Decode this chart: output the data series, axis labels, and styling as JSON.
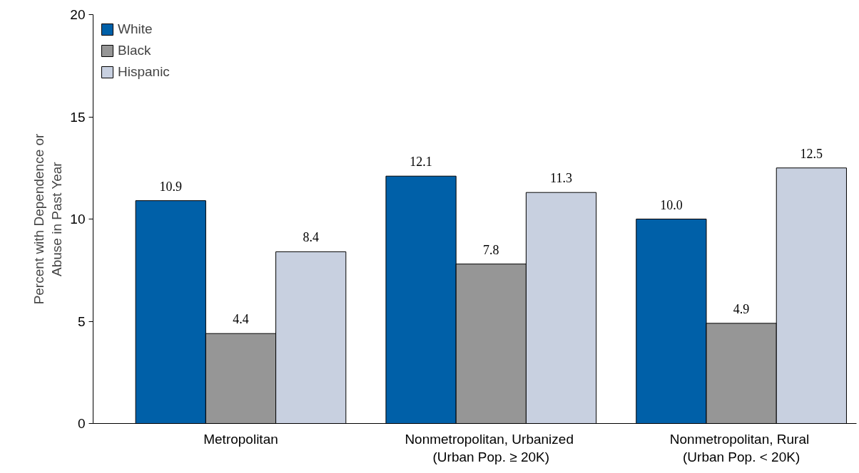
{
  "chart_data": {
    "type": "bar",
    "ylabel": "Percent with Dependence or\nAbuse in Past Year",
    "categories": [
      "Metropolitan",
      "Nonmetropolitan,  Urbanized\n(Urban Pop. ≥ 20K)",
      "Nonmetropolitan,  Rural\n(Urban Pop. < 20K)"
    ],
    "series": [
      {
        "name": "White",
        "color": "#0060a8",
        "values": [
          10.9,
          12.1,
          10.0
        ],
        "value_labels": [
          "10.9",
          "12.1",
          "10.0"
        ]
      },
      {
        "name": "Black",
        "color": "#969696",
        "values": [
          4.4,
          7.8,
          4.9
        ],
        "value_labels": [
          "4.4",
          "7.8",
          "4.9"
        ]
      },
      {
        "name": "Hispanic",
        "color": "#c8d0e0",
        "values": [
          8.4,
          11.3,
          12.5
        ],
        "value_labels": [
          "8.4",
          "11.3",
          "12.5"
        ]
      }
    ],
    "ylim": [
      0,
      20
    ],
    "yticks": [
      0,
      5,
      10,
      15,
      20
    ],
    "grid": false,
    "legend": "top left"
  }
}
